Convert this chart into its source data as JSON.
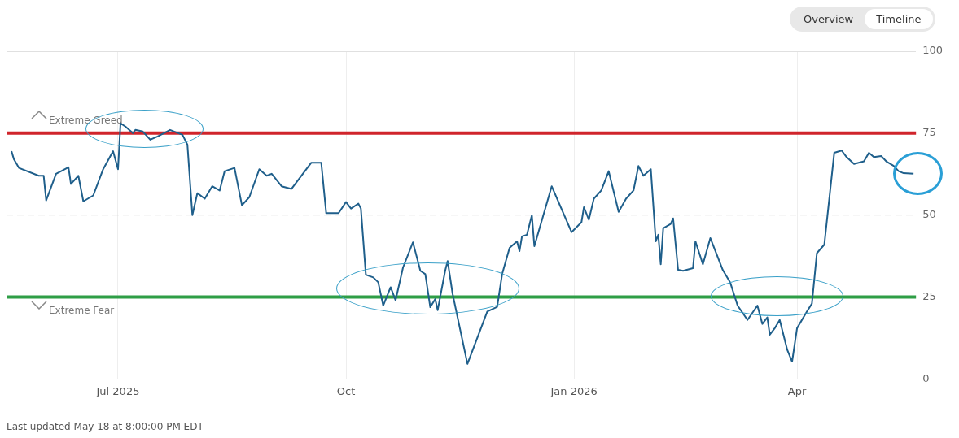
{
  "chart_data": {
    "type": "line",
    "x": [
      "2025-05-19",
      "2025-05-20",
      "2025-05-22",
      "2025-05-30",
      "2025-06-01",
      "2025-06-02",
      "2025-06-06",
      "2025-06-11",
      "2025-06-12",
      "2025-06-15",
      "2025-06-17",
      "2025-06-21",
      "2025-06-25",
      "2025-06-29",
      "2025-07-01",
      "2025-07-02",
      "2025-07-04",
      "2025-07-07",
      "2025-07-08",
      "2025-07-11",
      "2025-07-14",
      "2025-07-17",
      "2025-07-22",
      "2025-07-27",
      "2025-07-29",
      "2025-07-31",
      "2025-08-02",
      "2025-08-05",
      "2025-08-08",
      "2025-08-11",
      "2025-08-13",
      "2025-08-17",
      "2025-08-20",
      "2025-08-23",
      "2025-08-27",
      "2025-08-30",
      "2025-09-01",
      "2025-09-05",
      "2025-09-09",
      "2025-09-15",
      "2025-09-17",
      "2025-09-21",
      "2025-09-23",
      "2025-09-24",
      "2025-09-28",
      "2025-10-01",
      "2025-10-03",
      "2025-10-06",
      "2025-10-07",
      "2025-10-09",
      "2025-10-12",
      "2025-10-14",
      "2025-10-16",
      "2025-10-19",
      "2025-10-21",
      "2025-10-24",
      "2025-10-28",
      "2025-10-31",
      "2025-11-02",
      "2025-11-04",
      "2025-11-06",
      "2025-11-07",
      "2025-11-10",
      "2025-11-11",
      "2025-11-13",
      "2025-11-19",
      "2025-11-27",
      "2025-12-01",
      "2025-12-03",
      "2025-12-06",
      "2025-12-09",
      "2025-12-10",
      "2025-12-11",
      "2025-12-13",
      "2025-12-15",
      "2025-12-16",
      "2025-12-23",
      "2025-12-31",
      "2026-01-04",
      "2026-01-05",
      "2026-01-07",
      "2026-01-09",
      "2026-01-12",
      "2026-01-15",
      "2026-01-19",
      "2026-01-22",
      "2026-01-25",
      "2026-01-27",
      "2026-01-29",
      "2026-02-01",
      "2026-02-03",
      "2026-02-04",
      "2026-02-05",
      "2026-02-06",
      "2026-02-09",
      "2026-02-10",
      "2026-02-12",
      "2026-02-14",
      "2026-02-18",
      "2026-02-19",
      "2026-02-22",
      "2026-02-25",
      "2026-03-02",
      "2026-03-05",
      "2026-03-08",
      "2026-03-12",
      "2026-03-16",
      "2026-03-18",
      "2026-03-20",
      "2026-03-21",
      "2026-03-23",
      "2026-03-25",
      "2026-03-28",
      "2026-03-30",
      "2026-04-01",
      "2026-04-05",
      "2026-04-07",
      "2026-04-09",
      "2026-04-12",
      "2026-04-14",
      "2026-04-16",
      "2026-04-19",
      "2026-04-21",
      "2026-04-24",
      "2026-04-28",
      "2026-04-30",
      "2026-05-02",
      "2026-05-05",
      "2026-05-07",
      "2026-05-10",
      "2026-05-12",
      "2026-05-14",
      "2026-05-18"
    ],
    "series": [
      {
        "color": "#1f5f8b",
        "values": [
          69.5,
          67,
          64.4,
          62,
          62,
          54.5,
          62.6,
          64.6,
          59.5,
          62,
          54.2,
          56,
          64,
          69.5,
          64,
          78,
          77,
          75,
          76,
          75.5,
          73,
          74,
          76,
          74.5,
          71.5,
          50,
          56.7,
          55,
          58.8,
          57.5,
          63.4,
          64.4,
          53,
          55.5,
          64,
          62,
          62.6,
          58.8,
          58,
          64,
          66,
          66,
          50.6,
          50.6,
          50.6,
          54,
          52,
          53.5,
          52,
          31.8,
          31,
          29.5,
          22.4,
          28,
          24,
          34,
          41.7,
          33,
          32,
          21.9,
          24.4,
          21,
          33,
          36,
          26,
          4.6,
          20.6,
          22,
          32,
          40,
          42,
          39,
          43.5,
          44,
          50,
          40.5,
          58.8,
          44.8,
          47.8,
          52.4,
          48.6,
          55,
          57.5,
          63.4,
          51,
          55,
          57.5,
          65,
          62,
          64,
          42,
          44,
          35,
          46,
          47.3,
          49,
          33.3,
          33,
          33.8,
          42,
          35,
          43,
          33.3,
          29.5,
          22.4,
          18,
          22.4,
          16.8,
          18.8,
          13.5,
          15.5,
          18,
          9,
          5.3,
          15.5,
          20.6,
          23,
          38.4,
          41,
          55,
          69,
          69.7,
          67.7,
          65.6,
          66.4,
          69,
          67.7,
          68,
          66.4,
          65,
          63.4,
          62.8,
          62.6
        ]
      }
    ],
    "xlim": [
      "2025-05-17",
      "2026-05-19"
    ],
    "xticks": [
      {
        "value": "2025-07-01",
        "label": "Jul 2025"
      },
      {
        "value": "2025-10-01",
        "label": "Oct"
      },
      {
        "value": "2026-01-01",
        "label": "Jan 2026"
      },
      {
        "value": "2026-04-01",
        "label": "Apr"
      }
    ],
    "ylim": [
      0,
      100
    ],
    "yticks": [
      0,
      25,
      50,
      75,
      100
    ],
    "grid": true,
    "legend": false,
    "marker": "none",
    "line_style": "solid",
    "ref_lines": [
      {
        "axis": "y",
        "value": 75,
        "label": "Extreme Greed",
        "color": "#d0242b"
      },
      {
        "axis": "y",
        "value": 25,
        "label": "Extreme Fear",
        "color": "#2e9e46"
      },
      {
        "axis": "y",
        "value": 50,
        "color": "#cfcfcf",
        "line_style": "dashed"
      }
    ],
    "annotations": [
      "Overview",
      "Timeline",
      "Last updated May 18 at 8:00:00 PM EDT"
    ]
  }
}
